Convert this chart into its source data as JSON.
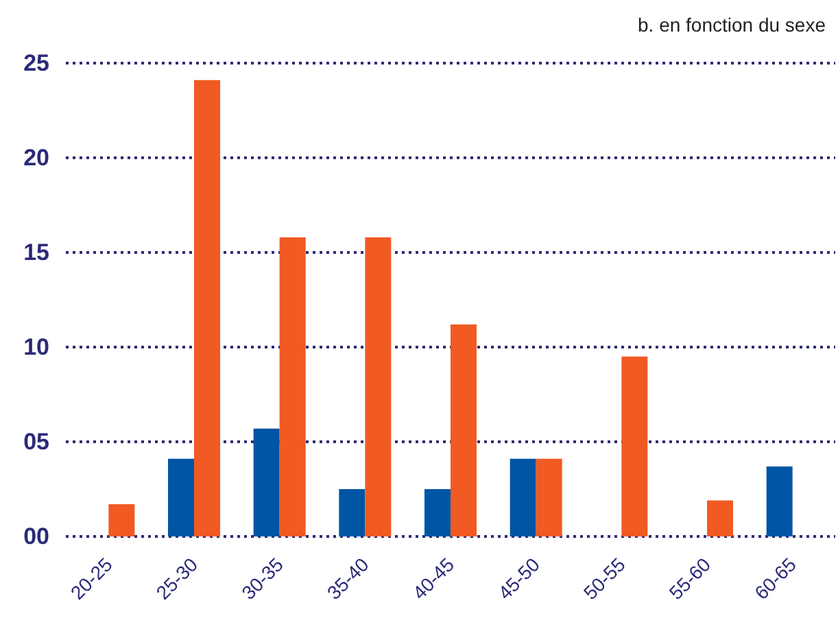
{
  "chart_data": {
    "type": "bar",
    "title": "b. en fonction du sexe",
    "categories": [
      "20-25",
      "25-30",
      "30-35",
      "35-40",
      "40-45",
      "45-50",
      "50-55",
      "55-60",
      "60-65"
    ],
    "series": [
      {
        "color": "#0055a5",
        "values": [
          null,
          4.1,
          5.7,
          2.5,
          2.5,
          4.1,
          null,
          null,
          3.7
        ]
      },
      {
        "color": "#f15a22",
        "values": [
          1.7,
          24.1,
          15.8,
          15.8,
          11.2,
          4.1,
          9.5,
          1.9,
          null
        ]
      }
    ],
    "ylim": [
      0,
      25
    ],
    "yticks": [
      {
        "value": 0,
        "label": "00"
      },
      {
        "value": 5,
        "label": "05"
      },
      10,
      15,
      20,
      25
    ],
    "grid": "y"
  }
}
